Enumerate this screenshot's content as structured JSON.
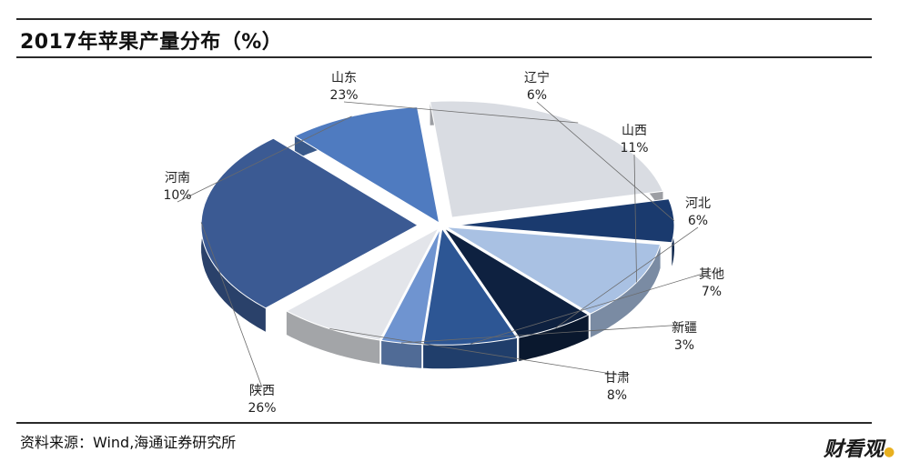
{
  "title": "2017年苹果产量分布（%）",
  "source": "资料来源：Wind,海通证券研究所",
  "watermark": "财看观",
  "chart_data": {
    "type": "pie",
    "title": "2017年苹果产量分布（%）",
    "unit": "%",
    "slices": [
      {
        "name": "辽宁",
        "value": 6,
        "label": "6%",
        "color": "#1a3a6e"
      },
      {
        "name": "山西",
        "value": 11,
        "label": "11%",
        "color": "#a9c1e3"
      },
      {
        "name": "河北",
        "value": 6,
        "label": "6%",
        "color": "#0e2140"
      },
      {
        "name": "其他",
        "value": 7,
        "label": "7%",
        "color": "#2d5694"
      },
      {
        "name": "新疆",
        "value": 3,
        "label": "3%",
        "color": "#6f94d0"
      },
      {
        "name": "甘肃",
        "value": 8,
        "label": "8%",
        "color": "#e3e5ea"
      },
      {
        "name": "陕西",
        "value": 26,
        "label": "26%",
        "color": "#3b5a93"
      },
      {
        "name": "河南",
        "value": 10,
        "label": "10%",
        "color": "#4f7bc0"
      },
      {
        "name": "山东",
        "value": 23,
        "label": "23%",
        "color": "#d9dce2"
      }
    ]
  }
}
